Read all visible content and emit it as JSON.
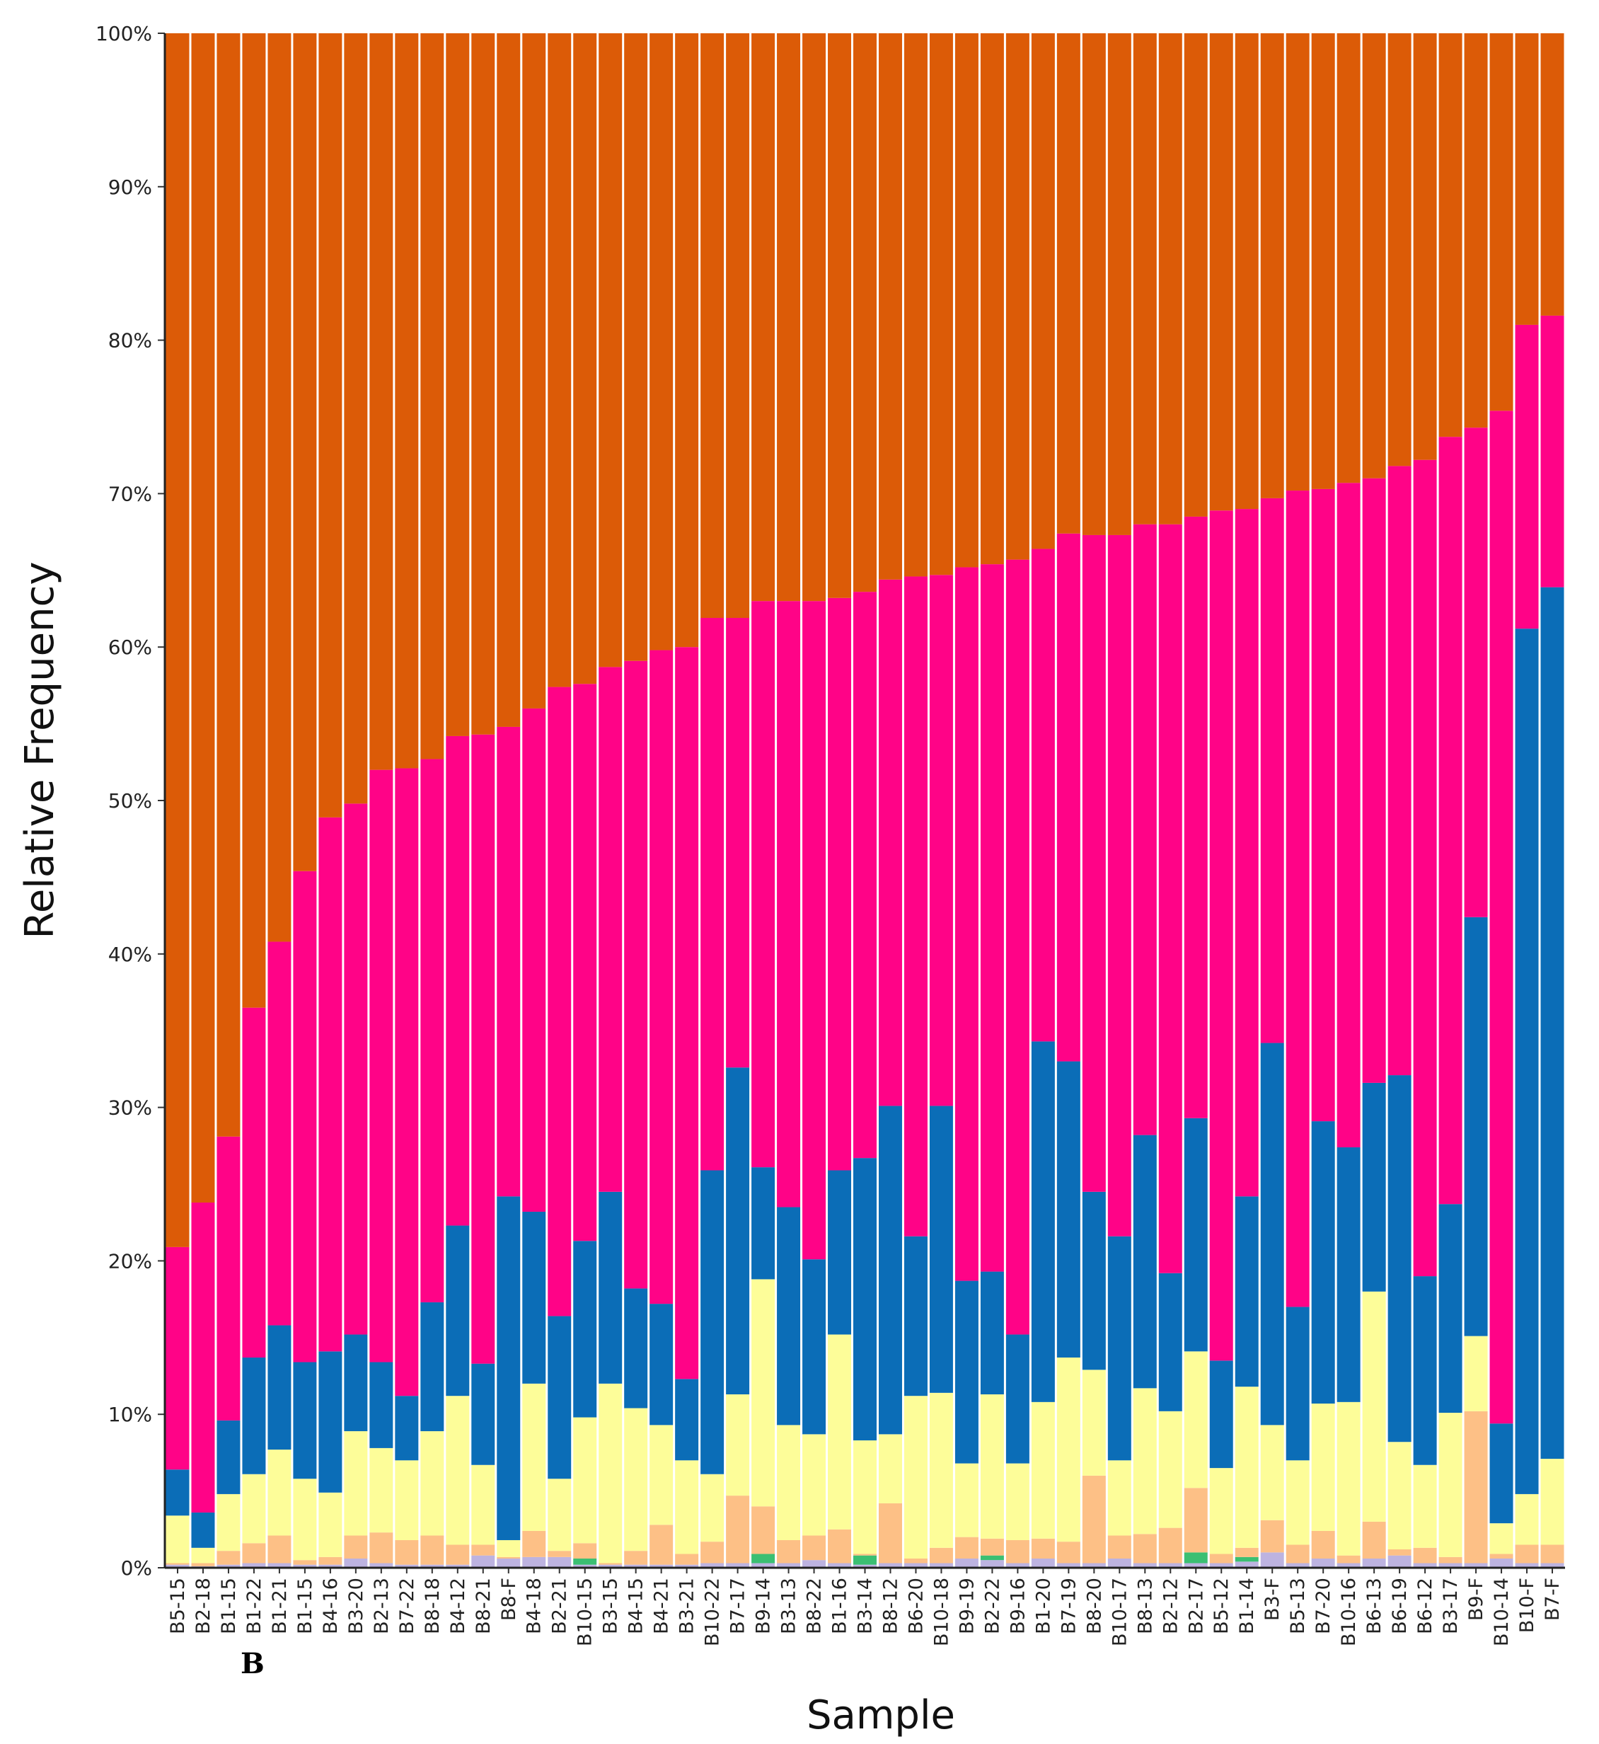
{
  "panel_label": "B",
  "chart_data": {
    "type": "bar",
    "stacked": true,
    "normalized": true,
    "xlabel": "Sample",
    "ylabel": "Relative Frequency",
    "ylim": [
      0,
      100
    ],
    "yticks": [
      "0%",
      "10%",
      "20%",
      "30%",
      "40%",
      "50%",
      "60%",
      "70%",
      "80%",
      "90%",
      "100%"
    ],
    "grid": false,
    "categories": [
      "B5-15",
      "B2-18",
      "B1-15",
      "B1-22",
      "B1-21",
      "B1-15",
      "B4-16",
      "B3-20",
      "B2-13",
      "B7-22",
      "B8-18",
      "B4-12",
      "B8-21",
      "B8-F",
      "B4-18",
      "B2-21",
      "B10-15",
      "B3-15",
      "B4-15",
      "B4-21",
      "B3-21",
      "B10-22",
      "B7-17",
      "B9-14",
      "B3-13",
      "B8-22",
      "B1-16",
      "B3-14",
      "B8-12",
      "B6-20",
      "B10-18",
      "B9-19",
      "B2-22",
      "B9-16",
      "B1-20",
      "B7-19",
      "B8-20",
      "B10-17",
      "B8-13",
      "B2-12",
      "B2-17",
      "B5-12",
      "B1-14",
      "B3-F",
      "B5-13",
      "B7-20",
      "B10-16",
      "B6-13",
      "B6-19",
      "B6-12",
      "B3-17",
      "B9-F",
      "B10-14",
      "B10-F",
      "B7-F"
    ],
    "series": [
      {
        "color": "#bdb3e0",
        "values": [
          0.2,
          0.1,
          0.2,
          0.3,
          0.3,
          0.2,
          0.2,
          0.6,
          0.3,
          0.2,
          0.2,
          0.2,
          0.8,
          0.6,
          0.7,
          0.7,
          0.2,
          0.2,
          0.2,
          0.2,
          0.2,
          0.3,
          0.3,
          0.3,
          0.3,
          0.5,
          0.3,
          0.2,
          0.3,
          0.3,
          0.3,
          0.6,
          0.5,
          0.3,
          0.6,
          0.3,
          0.3,
          0.6,
          0.3,
          0.3,
          0.3,
          0.3,
          0.4,
          1.0,
          0.3,
          0.6,
          0.3,
          0.6,
          0.8,
          0.3,
          0.3,
          0.3,
          0.6,
          0.3,
          0.3
        ]
      },
      {
        "color": "#3bbf72",
        "values": [
          0,
          0,
          0,
          0,
          0,
          0,
          0,
          0,
          0,
          0,
          0,
          0,
          0,
          0,
          0,
          0,
          0.4,
          0,
          0,
          0,
          0,
          0,
          0,
          0.6,
          0,
          0,
          0,
          0.6,
          0,
          0,
          0,
          0,
          0.3,
          0,
          0,
          0,
          0,
          0,
          0,
          0,
          0.7,
          0,
          0.3,
          0,
          0,
          0,
          0,
          0,
          0,
          0,
          0,
          0,
          0,
          0,
          0
        ]
      },
      {
        "color": "#fdc086",
        "values": [
          0.1,
          0.2,
          0.9,
          1.3,
          1.8,
          0.3,
          0.5,
          1.5,
          2.0,
          1.6,
          1.9,
          1.3,
          0.7,
          0.1,
          1.7,
          0.4,
          1.0,
          0.1,
          0.9,
          2.6,
          0.7,
          1.4,
          4.4,
          3.1,
          1.5,
          1.6,
          2.2,
          0.1,
          3.9,
          0.3,
          1.0,
          1.4,
          1.1,
          1.5,
          1.3,
          1.4,
          5.7,
          1.5,
          1.9,
          2.3,
          4.2,
          0.6,
          0.6,
          2.1,
          1.2,
          1.8,
          0.5,
          2.4,
          0.4,
          1.0,
          0.4,
          9.9,
          0.3,
          1.2,
          1.2
        ]
      },
      {
        "color": "#fdfd99",
        "values": [
          3.1,
          1.0,
          3.7,
          4.5,
          5.6,
          5.3,
          4.2,
          6.8,
          5.5,
          5.2,
          6.8,
          9.7,
          5.2,
          1.1,
          9.6,
          4.7,
          8.2,
          11.7,
          9.3,
          6.5,
          6.1,
          4.4,
          6.6,
          14.8,
          7.5,
          6.6,
          12.7,
          7.4,
          4.5,
          10.6,
          10.1,
          4.8,
          9.4,
          5.0,
          8.9,
          12.0,
          6.9,
          4.9,
          9.5,
          7.6,
          8.9,
          5.6,
          10.5,
          6.2,
          5.5,
          8.3,
          10.0,
          15.0,
          7.0,
          5.4,
          9.4,
          4.9,
          2.0,
          3.3,
          5.6
        ]
      },
      {
        "color": "#0b6db7",
        "values": [
          3.0,
          2.3,
          4.8,
          7.6,
          8.1,
          7.6,
          9.2,
          6.3,
          5.6,
          4.2,
          8.4,
          11.1,
          6.6,
          22.4,
          11.2,
          10.6,
          11.5,
          12.5,
          7.8,
          7.9,
          5.3,
          19.8,
          21.3,
          7.3,
          14.2,
          11.4,
          10.7,
          18.4,
          21.4,
          10.4,
          18.7,
          11.9,
          8.0,
          8.4,
          23.5,
          19.3,
          11.6,
          14.6,
          16.5,
          9.0,
          15.2,
          7.0,
          12.4,
          24.9,
          10.0,
          18.4,
          16.6,
          13.6,
          23.9,
          12.3,
          13.6,
          27.3,
          6.5,
          56.4,
          56.8
        ]
      },
      {
        "color": "#ff0387",
        "values": [
          14.5,
          20.2,
          18.5,
          22.8,
          25.0,
          32.0,
          34.8,
          34.6,
          38.6,
          40.9,
          35.4,
          31.9,
          41.0,
          30.6,
          32.8,
          41.0,
          36.3,
          34.2,
          40.9,
          42.6,
          47.7,
          36.0,
          29.3,
          36.9,
          39.5,
          42.9,
          37.3,
          36.9,
          34.3,
          43.0,
          34.6,
          46.5,
          46.1,
          50.5,
          32.1,
          34.4,
          42.8,
          45.7,
          39.8,
          48.8,
          39.2,
          55.4,
          44.8,
          35.5,
          53.2,
          41.2,
          43.3,
          39.4,
          39.7,
          53.2,
          50.0,
          31.9,
          66.0,
          19.8,
          17.7
        ]
      },
      {
        "color": "#dc5b07",
        "values": [
          79.1,
          76.2,
          71.9,
          63.5,
          59.2,
          54.6,
          51.1,
          50.2,
          48.0,
          47.9,
          47.3,
          45.8,
          45.7,
          45.2,
          44.0,
          42.6,
          42.4,
          41.3,
          40.9,
          40.2,
          40.0,
          38.1,
          38.1,
          37.0,
          37.0,
          37.0,
          36.8,
          36.4,
          35.6,
          35.4,
          35.3,
          34.8,
          34.6,
          34.3,
          33.6,
          32.6,
          32.7,
          32.7,
          32.0,
          32.0,
          31.5,
          31.1,
          31.0,
          30.3,
          29.8,
          29.7,
          29.3,
          29.0,
          28.2,
          27.8,
          26.3,
          25.7,
          24.6,
          19.0,
          18.4
        ]
      }
    ]
  }
}
